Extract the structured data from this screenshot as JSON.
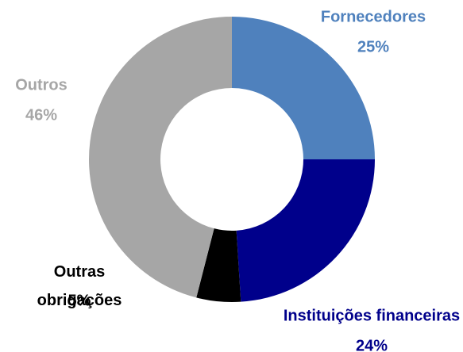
{
  "chart_data": {
    "type": "donut",
    "categories": [
      "Fornecedores",
      "Instituições financeiras",
      "Outras obrigações",
      "Outros"
    ],
    "values": [
      25,
      24,
      5,
      46
    ],
    "value_labels": [
      "25%",
      "24%",
      "5%",
      "46%"
    ],
    "colors": [
      "#4f81bd",
      "#00008b",
      "#000000",
      "#a6a6a6"
    ]
  }
}
